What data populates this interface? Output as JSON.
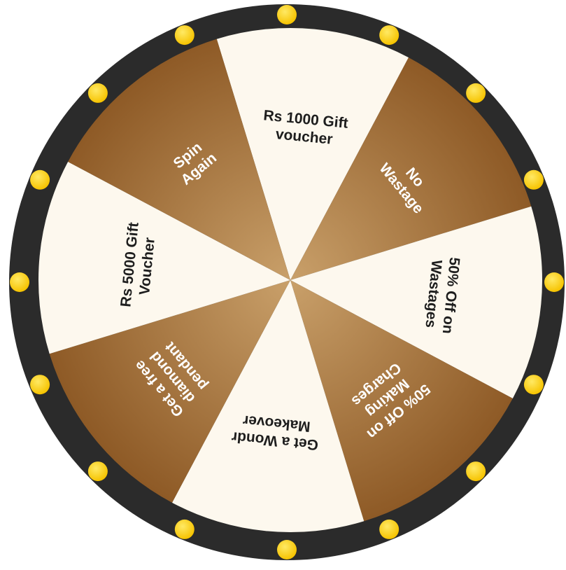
{
  "wheel": {
    "colors": {
      "rim": "#2b2b2b",
      "cream_segment": "#fdf8ee",
      "bronze_light": "#c9a06a",
      "bronze_dark": "#8e5a26",
      "text_dark": "#1e1e1e",
      "text_light": "#ffffff",
      "bulb": "#f6c300",
      "bulb_highlight": "#ffe964"
    },
    "bulb_count": 16,
    "segments": [
      {
        "lines": [
          "Rs 1000 Gift",
          "voucher"
        ],
        "style": "cream"
      },
      {
        "lines": [
          "No",
          "Wastage"
        ],
        "style": "bronze"
      },
      {
        "lines": [
          "50% Off on",
          "Wastages"
        ],
        "style": "cream"
      },
      {
        "lines": [
          "50% Off on",
          "Making",
          "Charges"
        ],
        "style": "bronze"
      },
      {
        "lines": [
          "Get a Wondr",
          "Makeover"
        ],
        "style": "cream"
      },
      {
        "lines": [
          "Get a free",
          "diamond",
          "pendant"
        ],
        "style": "bronze"
      },
      {
        "lines": [
          "Rs 5000 Gift",
          "Voucher"
        ],
        "style": "cream"
      },
      {
        "lines": [
          "Spin",
          "Again"
        ],
        "style": "bronze"
      }
    ]
  }
}
